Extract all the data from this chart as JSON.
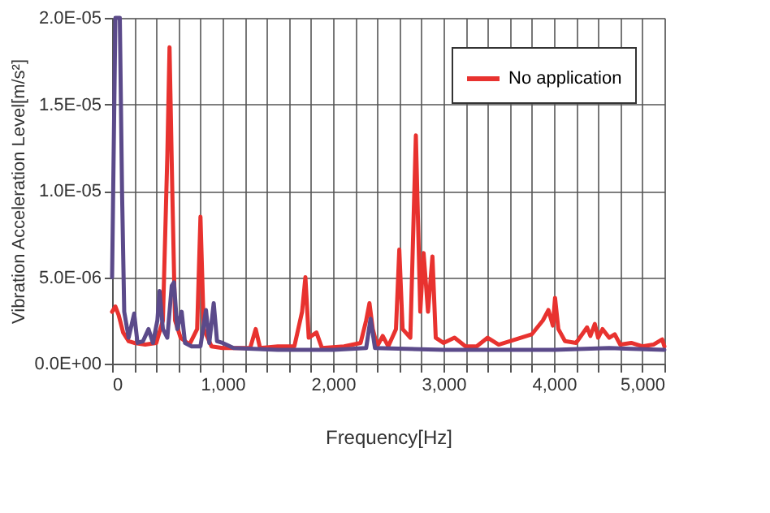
{
  "chart_data": {
    "type": "line",
    "xlabel": "Frequency[Hz]",
    "ylabel": "Vibration Acceleration Level[m/s²]",
    "xlim": [
      0,
      5000
    ],
    "ylim": [
      0,
      2e-05
    ],
    "xticks": [
      0,
      {
        "value": 200,
        "label": null
      },
      {
        "value": 400,
        "label": null
      },
      {
        "value": 600,
        "label": null
      },
      {
        "value": 800,
        "label": null
      },
      {
        "value": 1000,
        "label": "1,000"
      },
      {
        "value": 1200,
        "label": null
      },
      {
        "value": 1400,
        "label": null
      },
      {
        "value": 1600,
        "label": null
      },
      {
        "value": 1800,
        "label": null
      },
      {
        "value": 2000,
        "label": "2,000"
      },
      {
        "value": 2200,
        "label": null
      },
      {
        "value": 2400,
        "label": null
      },
      {
        "value": 2600,
        "label": null
      },
      {
        "value": 2800,
        "label": null
      },
      {
        "value": 3000,
        "label": "3,000"
      },
      {
        "value": 3200,
        "label": null
      },
      {
        "value": 3400,
        "label": null
      },
      {
        "value": 3600,
        "label": null
      },
      {
        "value": 3800,
        "label": null
      },
      {
        "value": 4000,
        "label": "4,000"
      },
      {
        "value": 4200,
        "label": null
      },
      {
        "value": 4400,
        "label": null
      },
      {
        "value": 4600,
        "label": null
      },
      {
        "value": 4800,
        "label": null
      },
      {
        "value": 5000,
        "label": "5,000"
      }
    ],
    "yticks": [
      {
        "value": 0,
        "label": "0.0E+00"
      },
      {
        "value": 5e-06,
        "label": "5.0E-06"
      },
      {
        "value": 1e-05,
        "label": "1.0E-05"
      },
      {
        "value": 1.5e-05,
        "label": "1.5E-05"
      },
      {
        "value": 2e-05,
        "label": "2.0E-05"
      }
    ],
    "grid": true,
    "legend": "top right",
    "line_style": "solid",
    "series": [
      {
        "name": "No application",
        "color": "#e8322f",
        "x": [
          0,
          30,
          60,
          100,
          150,
          200,
          300,
          400,
          460,
          500,
          520,
          545,
          570,
          620,
          700,
          770,
          800,
          830,
          900,
          1000,
          1100,
          1250,
          1300,
          1340,
          1500,
          1650,
          1720,
          1750,
          1780,
          1850,
          1900,
          2100,
          2250,
          2300,
          2330,
          2360,
          2400,
          2450,
          2500,
          2570,
          2600,
          2630,
          2700,
          2750,
          2790,
          2820,
          2860,
          2900,
          2930,
          3000,
          3100,
          3200,
          3300,
          3400,
          3500,
          3600,
          3700,
          3800,
          3900,
          3950,
          3990,
          4010,
          4040,
          4100,
          4200,
          4300,
          4330,
          4370,
          4400,
          4440,
          4500,
          4550,
          4600,
          4700,
          4800,
          4900,
          4980,
          5000
        ],
        "values": [
          3e-06,
          3.3e-06,
          2.8e-06,
          1.8e-06,
          1.3e-06,
          1.2e-06,
          1.1e-06,
          1.2e-06,
          2.5e-06,
          1.2e-05,
          1.83e-05,
          1e-05,
          2.5e-06,
          1.5e-06,
          1.1e-06,
          2e-06,
          8.5e-06,
          2e-06,
          1e-06,
          9e-07,
          9e-07,
          9e-07,
          2e-06,
          9e-07,
          1e-06,
          1e-06,
          3e-06,
          5e-06,
          1.5e-06,
          1.8e-06,
          9e-07,
          1e-06,
          1.2e-06,
          2.5e-06,
          3.5e-06,
          2e-06,
          1e-06,
          1.6e-06,
          1e-06,
          2e-06,
          6.6e-06,
          2e-06,
          1.5e-06,
          1.32e-05,
          3e-06,
          6.4e-06,
          3e-06,
          6.2e-06,
          1.5e-06,
          1.2e-06,
          1.5e-06,
          1e-06,
          1e-06,
          1.5e-06,
          1.1e-06,
          1.3e-06,
          1.5e-06,
          1.7e-06,
          2.5e-06,
          3.1e-06,
          2.2e-06,
          3.8e-06,
          2e-06,
          1.3e-06,
          1.2e-06,
          2.1e-06,
          1.6e-06,
          2.3e-06,
          1.5e-06,
          2e-06,
          1.5e-06,
          1.7e-06,
          1.1e-06,
          1.2e-06,
          1e-06,
          1.1e-06,
          1.4e-06,
          1e-06
        ]
      },
      {
        "color": "#5b4a8a",
        "x": [
          0,
          30,
          50,
          70,
          90,
          110,
          150,
          200,
          230,
          280,
          330,
          370,
          410,
          430,
          460,
          500,
          540,
          560,
          590,
          630,
          660,
          720,
          800,
          850,
          880,
          920,
          950,
          1000,
          1100,
          1500,
          2000,
          2300,
          2340,
          2380,
          3000,
          4000,
          4500,
          5000
        ],
        "values": [
          5e-06,
          2e-05,
          2e-05,
          2e-05,
          1e-05,
          3e-06,
          1.5e-06,
          2.9e-06,
          1.2e-06,
          1.3e-06,
          2e-06,
          1.2e-06,
          2.5e-06,
          4.2e-06,
          2e-06,
          1.5e-06,
          4.5e-06,
          4.7e-06,
          2e-06,
          3e-06,
          1.2e-06,
          1e-06,
          1e-06,
          3.1e-06,
          1.2e-06,
          3.5e-06,
          1.3e-06,
          1.2e-06,
          9e-07,
          8e-07,
          8e-07,
          9e-07,
          2.6e-06,
          9e-07,
          8e-07,
          8e-07,
          9e-07,
          8e-07
        ]
      }
    ]
  }
}
